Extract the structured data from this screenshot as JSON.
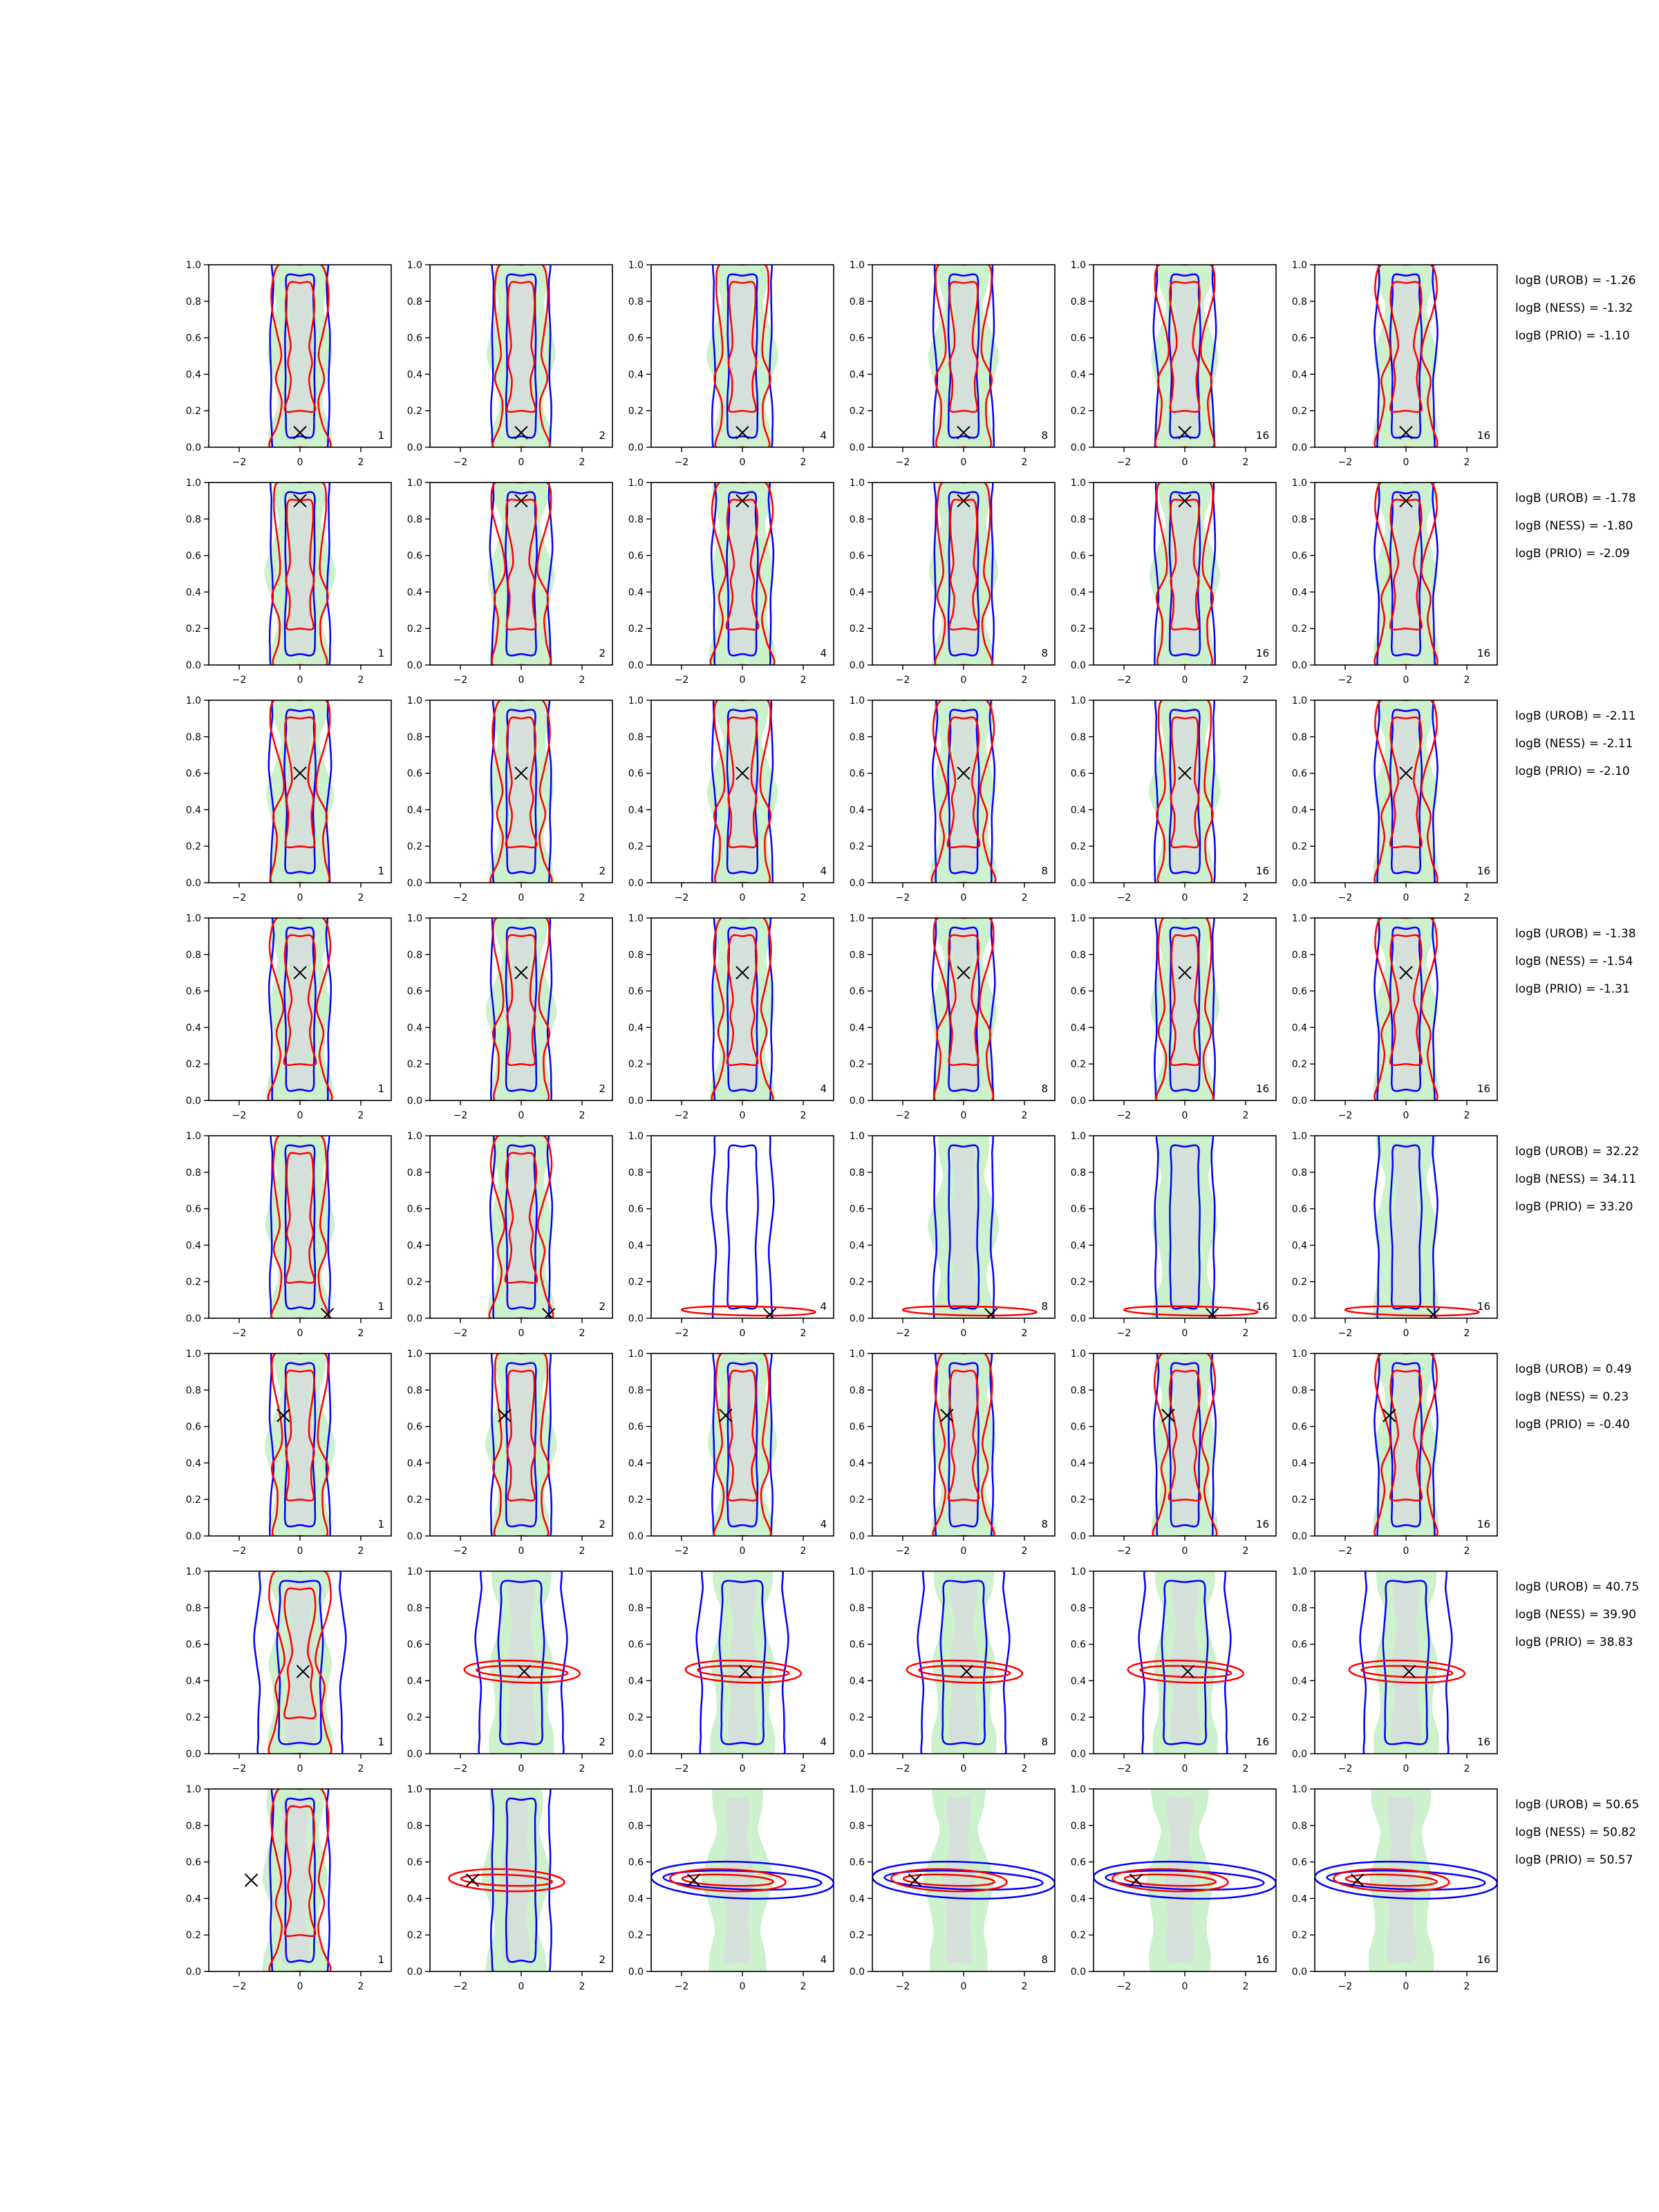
{
  "figure": {
    "rows": 8,
    "cols": 6,
    "x_range": [
      -3,
      3
    ],
    "y_range": [
      0,
      1
    ],
    "x_ticks": [
      -2,
      0,
      2
    ],
    "x_tick_labels": [
      "−2",
      "0",
      "2"
    ],
    "y_ticks": [
      0,
      0.2,
      0.4,
      0.6,
      0.8,
      1.0
    ],
    "y_tick_labels": [
      "0.0",
      "0.2",
      "0.4",
      "0.6",
      "0.8",
      "1.0"
    ],
    "panel_numbers": [
      "1",
      "2",
      "4",
      "8",
      "16",
      "16"
    ],
    "colors": {
      "outer_contour": "#0000ff",
      "inner_contour": "#ff0000",
      "fill_green": "#c6efc6",
      "fill_grey": "#d8d8e0",
      "marker": "#000000"
    }
  },
  "chart_data": {
    "type": "contour",
    "rows": [
      {
        "truth": [
          0.0,
          0.08
        ],
        "logb": [
          "logB (UROB) = -1.26",
          "logB (NESS) = -1.32",
          "logB (PRIO) = -1.10"
        ]
      },
      {
        "truth": [
          0.0,
          0.9
        ],
        "logb": [
          "logB (UROB) = -1.78",
          "logB (NESS) = -1.80",
          "logB (PRIO) = -2.09"
        ]
      },
      {
        "truth": [
          0.0,
          0.6
        ],
        "logb": [
          "logB (UROB) = -2.11",
          "logB (NESS) = -2.11",
          "logB (PRIO) = -2.10"
        ]
      },
      {
        "truth": [
          0.0,
          0.7
        ],
        "logb": [
          "logB (UROB) = -1.38",
          "logB (NESS) = -1.54",
          "logB (PRIO) = -1.31"
        ]
      },
      {
        "truth": [
          0.9,
          0.02
        ],
        "logb": [
          "logB (UROB) = 32.22",
          "logB (NESS) = 34.11",
          "logB (PRIO) = 33.20"
        ]
      },
      {
        "truth": [
          -0.55,
          0.66
        ],
        "logb": [
          "logB (UROB) = 0.49",
          "logB (NESS) = 0.23",
          "logB (PRIO) = -0.40"
        ]
      },
      {
        "truth": [
          0.1,
          0.45
        ],
        "logb": [
          "logB (UROB) = 40.75",
          "logB (NESS) = 39.90",
          "logB (PRIO) = 38.83"
        ]
      },
      {
        "truth": [
          -1.6,
          0.5
        ],
        "logb": [
          "logB (UROB) = 50.65",
          "logB (NESS) = 50.82",
          "logB (PRIO) = 50.57"
        ]
      }
    ]
  }
}
